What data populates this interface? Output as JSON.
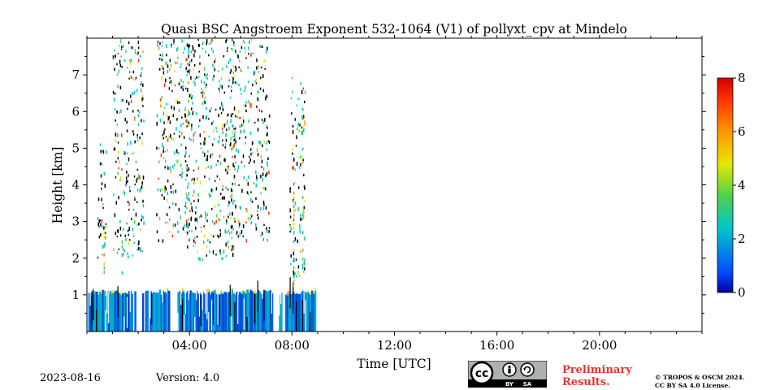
{
  "chart_data": {
    "type": "heatmap",
    "title": "Quasi BSC Angstroem Exponent 532-1064 (V1) of pollyxt_cpv at Mindelo",
    "xlabel": "Time [UTC]",
    "ylabel": "Height [km]",
    "xlim": [
      0,
      24
    ],
    "ylim": [
      0,
      8
    ],
    "x_ticks": [
      {
        "value": 4,
        "label": "04:00"
      },
      {
        "value": 8,
        "label": "08:00"
      },
      {
        "value": 12,
        "label": "12:00"
      },
      {
        "value": 16,
        "label": "16:00"
      },
      {
        "value": 20,
        "label": "20:00"
      }
    ],
    "y_ticks": [
      {
        "value": 1,
        "label": "1"
      },
      {
        "value": 2,
        "label": "2"
      },
      {
        "value": 3,
        "label": "3"
      },
      {
        "value": 4,
        "label": "4"
      },
      {
        "value": 5,
        "label": "5"
      },
      {
        "value": 6,
        "label": "6"
      },
      {
        "value": 7,
        "label": "7"
      }
    ],
    "colorbar": {
      "min": 0,
      "max": 8,
      "ticks": [
        "0",
        "2",
        "4",
        "6",
        "8"
      ],
      "colormap": "jet"
    },
    "data_extent_hours": [
      0,
      8.9
    ],
    "boundary_layer_top_km": 1.15,
    "description_values": {
      "dense_layer_km": [
        0,
        1.2
      ],
      "scattered_aerosol_km": [
        1.2,
        8
      ]
    }
  },
  "footer": {
    "date": "2023-08-16",
    "version": "Version: 4.0",
    "preliminary_line1": "Preliminary",
    "preliminary_line2": "Results.",
    "copyright_line1": "© TROPOS & OSCM 2024.",
    "copyright_line2": "CC BY SA 4.0 License."
  },
  "license_badge": {
    "cc_text": "cc",
    "by_text": "BY",
    "sa_text": "SA"
  }
}
